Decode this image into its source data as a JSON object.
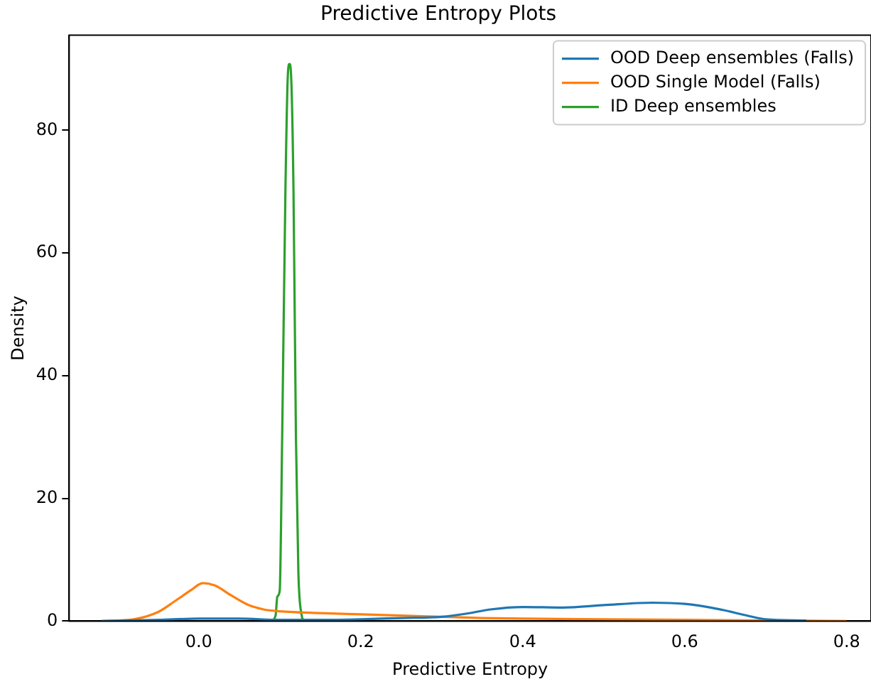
{
  "chart_data": {
    "type": "line",
    "title": "Predictive Entropy Plots",
    "xlabel": "Predictive Entropy",
    "ylabel": "Density",
    "xlim": [
      -0.16,
      0.83
    ],
    "ylim": [
      0,
      95.5
    ],
    "xticks": [
      {
        "value": 0,
        "label": "0.0"
      },
      {
        "value": 0.2,
        "label": "0.2"
      },
      {
        "value": 0.4,
        "label": "0.4"
      },
      {
        "value": 0.6,
        "label": "0.6"
      },
      {
        "value": 0.8,
        "label": "0.8"
      }
    ],
    "yticks": [
      0,
      20,
      40,
      60,
      80
    ],
    "grid": false,
    "legend": "top right",
    "marker": "none",
    "series": [
      {
        "name": "OOD Deep ensembles (Falls)",
        "color": "#1f77b4",
        "x": [
          -0.12,
          -0.05,
          0.0,
          0.05,
          0.1,
          0.15,
          0.2,
          0.25,
          0.3,
          0.33,
          0.36,
          0.4,
          0.45,
          0.5,
          0.56,
          0.6,
          0.64,
          0.68,
          0.7,
          0.75
        ],
        "values": [
          0,
          0.2,
          0.4,
          0.4,
          0.2,
          0.2,
          0.3,
          0.5,
          0.7,
          1.2,
          1.9,
          2.3,
          2.2,
          2.6,
          3.0,
          2.8,
          2.0,
          0.8,
          0.3,
          0.1
        ]
      },
      {
        "name": "OOD Single Model (Falls)",
        "color": "#ff7f0e",
        "x": [
          -0.12,
          -0.08,
          -0.05,
          -0.03,
          -0.01,
          0.005,
          0.02,
          0.04,
          0.06,
          0.08,
          0.1,
          0.15,
          0.2,
          0.25,
          0.3,
          0.35,
          0.4,
          0.5,
          0.6,
          0.7,
          0.8
        ],
        "values": [
          0,
          0.3,
          1.5,
          3.2,
          5.0,
          6.2,
          5.8,
          4.2,
          2.7,
          1.9,
          1.6,
          1.3,
          1.1,
          0.9,
          0.7,
          0.5,
          0.4,
          0.3,
          0.2,
          0.1,
          0
        ]
      },
      {
        "name": "ID Deep ensembles",
        "color": "#2ca02c",
        "x": [
          0.09,
          0.095,
          0.097,
          0.1,
          0.103,
          0.107,
          0.11,
          0.112,
          0.114,
          0.117,
          0.12,
          0.123,
          0.127,
          0.13
        ],
        "values": [
          0,
          1,
          4,
          5,
          30,
          70,
          89,
          90.8,
          89,
          70,
          30,
          8,
          1,
          0
        ]
      }
    ]
  }
}
